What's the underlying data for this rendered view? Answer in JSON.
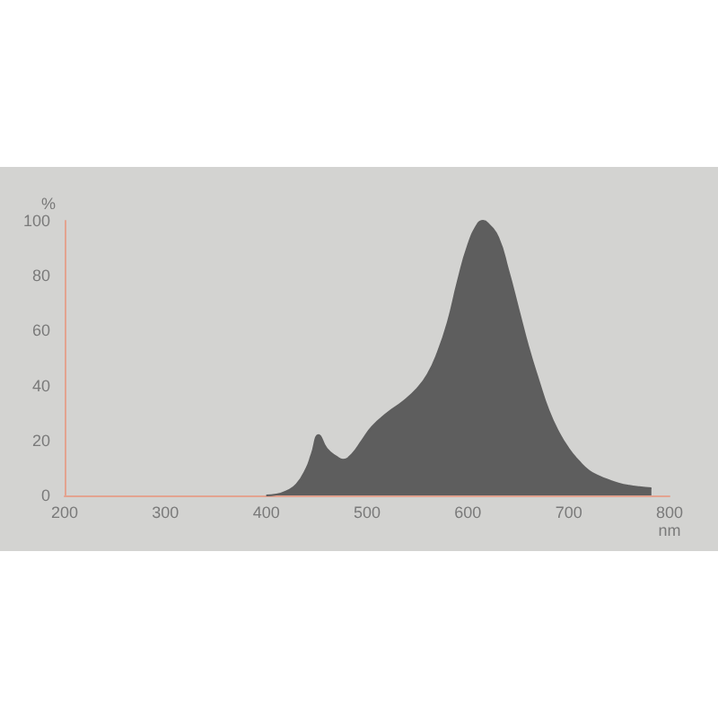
{
  "chart_data": {
    "type": "area",
    "xlabel": "nm",
    "ylabel": "%",
    "x": [
      400,
      410,
      420,
      430,
      440,
      445,
      452,
      460,
      470,
      476,
      485,
      495,
      505,
      520,
      535,
      550,
      560,
      570,
      580,
      590,
      600,
      610,
      615,
      620,
      630,
      640,
      650,
      660,
      670,
      680,
      690,
      700,
      710,
      720,
      730,
      740,
      750,
      760,
      770,
      782
    ],
    "series": [
      {
        "color": "#5e5e5e",
        "values": [
          0,
          0.3,
          1.5,
          4,
          10,
          15,
          22,
          17,
          14,
          13,
          15,
          20,
          25,
          30,
          34,
          39,
          44,
          52,
          63,
          78,
          91,
          99,
          100,
          99,
          94,
          82,
          68,
          54,
          42,
          31,
          23,
          17,
          12.5,
          9,
          7,
          5.5,
          4.3,
          3.5,
          3,
          2.6
        ]
      }
    ],
    "xlim": [
      200,
      800
    ],
    "xticks": [
      200,
      300,
      400,
      500,
      600,
      700,
      800
    ],
    "ylim": [
      0,
      100
    ],
    "yticks": [
      0,
      20,
      40,
      60,
      80,
      100
    ],
    "grid": false,
    "marker": "none"
  }
}
